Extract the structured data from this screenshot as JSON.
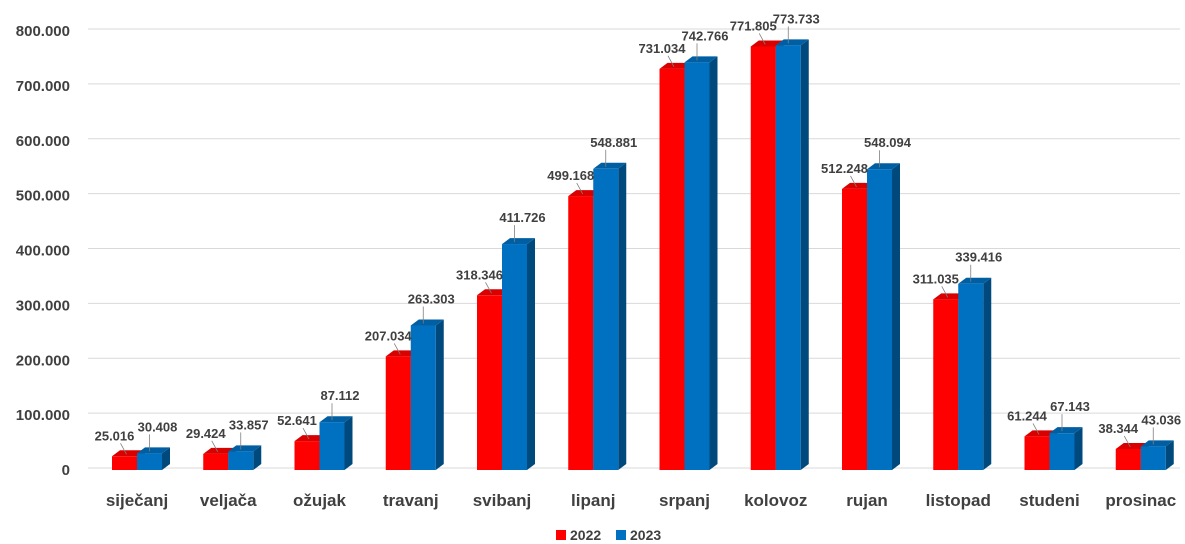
{
  "chart_data": {
    "type": "bar",
    "style": "3d-clustered-column",
    "categories": [
      "siječanj",
      "veljača",
      "ožujak",
      "travanj",
      "svibanj",
      "lipanj",
      "srpanj",
      "kolovoz",
      "rujan",
      "listopad",
      "studeni",
      "prosinac"
    ],
    "series": [
      {
        "name": "2022",
        "color": "#ff0000",
        "values": [
          25016,
          29424,
          52641,
          207034,
          318346,
          499168,
          731034,
          771805,
          512248,
          311035,
          61244,
          38344
        ],
        "labels": [
          "25.016",
          "29.424",
          "52.641",
          "207.034",
          "318.346",
          "499.168",
          "731.034",
          "771.805",
          "512.248",
          "311.035",
          "61.244",
          "38.344"
        ]
      },
      {
        "name": "2023",
        "color": "#0070c0",
        "values": [
          30408,
          33857,
          87112,
          263303,
          411726,
          548881,
          742766,
          773733,
          548094,
          339416,
          67143,
          43036
        ],
        "labels": [
          "30.408",
          "33.857",
          "87.112",
          "263.303",
          "411.726",
          "548.881",
          "742.766",
          "773.733",
          "548.094",
          "339.416",
          "67.143",
          "43.036"
        ]
      }
    ],
    "yticks": [
      0,
      100000,
      200000,
      300000,
      400000,
      500000,
      600000,
      700000,
      800000
    ],
    "ytick_labels": [
      "0",
      "100.000",
      "200.000",
      "300.000",
      "400.000",
      "500.000",
      "600.000",
      "700.000",
      "800.000"
    ],
    "ylim": [
      0,
      800000
    ],
    "title": "",
    "xlabel": "",
    "ylabel": "",
    "grid": true,
    "legend_position": "bottom"
  }
}
